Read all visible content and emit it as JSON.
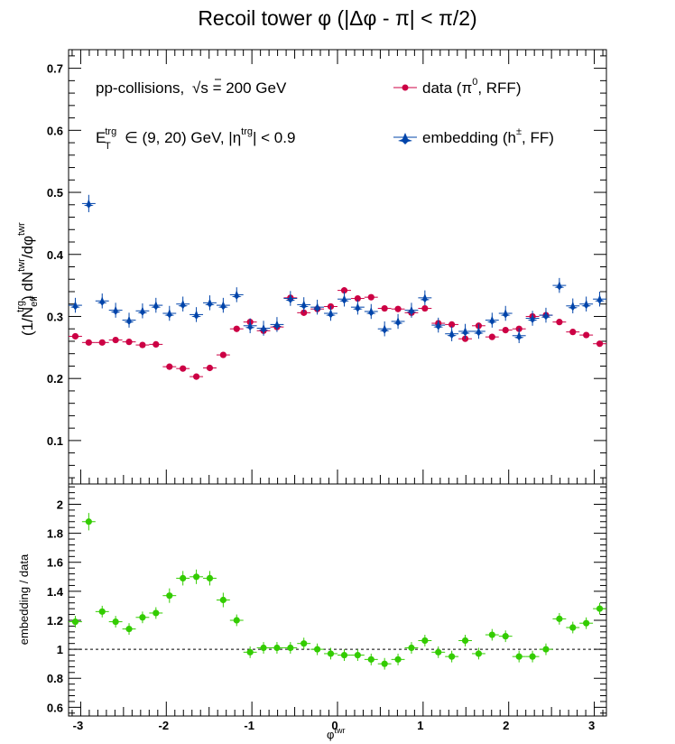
{
  "chart_data": {
    "type": "scatter",
    "title": "Recoil tower φ (|Δφ - π| < π/2)",
    "xlabel": "φ",
    "xlabel_sup": "twr",
    "xlim": [
      -3.1416,
      3.1416
    ],
    "x_ticks": [
      -3,
      -2,
      -1,
      0,
      1,
      2,
      3
    ],
    "bin_halfwidth": 0.0785,
    "legend_placement": "top-right",
    "annotations": {
      "collision_text": "pp-collisions,",
      "energy_text": "s = 200 GeV",
      "energy_sqrt": "√",
      "et_base": "E",
      "et_sub": "T",
      "et_sup": "trg",
      "et_range": "∈ (9, 20) GeV, |η",
      "eta_sup": "trg",
      "eta_cut": "| < 0.9"
    },
    "top_panel": {
      "ylabel": "(1/N",
      "ylabel_parts": {
        "sub1": "eff",
        "sup1": "trg",
        "mid": ") dN",
        "sup2": "twr",
        "mid2": "/dφ",
        "sup3": "twr"
      },
      "ylim": [
        0.03,
        0.73
      ],
      "y_ticks": [
        0.1,
        0.2,
        0.3,
        0.4,
        0.5,
        0.6,
        0.7
      ],
      "y_tick_labels": [
        "0.1",
        "0.2",
        "0.3",
        "0.4",
        "0.5",
        "0.6",
        "0.7"
      ],
      "series": [
        {
          "name": "data (π⁰, RFF)",
          "legend_base": "data (π",
          "legend_sup": "0",
          "legend_tail": ", RFF)",
          "color": "#cc0044",
          "marker": "circle",
          "x": [
            -3.063,
            -2.906,
            -2.749,
            -2.592,
            -2.435,
            -2.278,
            -2.121,
            -1.963,
            -1.806,
            -1.649,
            -1.492,
            -1.335,
            -1.178,
            -1.021,
            -0.864,
            -0.707,
            -0.55,
            -0.393,
            -0.236,
            -0.079,
            0.079,
            0.236,
            0.393,
            0.55,
            0.707,
            0.864,
            1.021,
            1.178,
            1.335,
            1.492,
            1.649,
            1.806,
            1.963,
            2.121,
            2.278,
            2.435,
            2.592,
            2.749,
            2.906,
            3.063
          ],
          "y": [
            0.268,
            0.258,
            0.258,
            0.262,
            0.259,
            0.254,
            0.255,
            0.219,
            0.216,
            0.203,
            0.217,
            0.238,
            0.28,
            0.291,
            0.277,
            0.283,
            0.33,
            0.306,
            0.312,
            0.316,
            0.342,
            0.329,
            0.331,
            0.313,
            0.312,
            0.306,
            0.313,
            0.289,
            0.287,
            0.264,
            0.285,
            0.267,
            0.278,
            0.28,
            0.3,
            0.302,
            0.291,
            0.275,
            0.27,
            0.256
          ],
          "yerr": [
            0.004,
            0.004,
            0.004,
            0.004,
            0.004,
            0.004,
            0.004,
            0.004,
            0.004,
            0.004,
            0.004,
            0.004,
            0.004,
            0.004,
            0.004,
            0.004,
            0.004,
            0.004,
            0.004,
            0.004,
            0.004,
            0.004,
            0.004,
            0.004,
            0.004,
            0.004,
            0.004,
            0.004,
            0.004,
            0.004,
            0.004,
            0.004,
            0.004,
            0.004,
            0.004,
            0.004,
            0.004,
            0.004,
            0.004,
            0.004
          ]
        },
        {
          "name": "embedding (h±, FF)",
          "legend_base": "embedding (h",
          "legend_sup": "±",
          "legend_tail": ", FF)",
          "color": "#0044aa",
          "marker": "star",
          "x": [
            -3.063,
            -2.906,
            -2.749,
            -2.592,
            -2.435,
            -2.278,
            -2.121,
            -1.963,
            -1.806,
            -1.649,
            -1.492,
            -1.335,
            -1.178,
            -1.021,
            -0.864,
            -0.707,
            -0.55,
            -0.393,
            -0.236,
            -0.079,
            0.079,
            0.236,
            0.393,
            0.55,
            0.707,
            0.864,
            1.021,
            1.178,
            1.335,
            1.492,
            1.649,
            1.806,
            1.963,
            2.121,
            2.278,
            2.435,
            2.592,
            2.749,
            2.906,
            3.063
          ],
          "y": [
            0.318,
            0.482,
            0.325,
            0.31,
            0.294,
            0.309,
            0.318,
            0.305,
            0.32,
            0.303,
            0.322,
            0.318,
            0.335,
            0.285,
            0.281,
            0.287,
            0.329,
            0.319,
            0.315,
            0.305,
            0.328,
            0.315,
            0.308,
            0.28,
            0.292,
            0.31,
            0.33,
            0.286,
            0.272,
            0.276,
            0.276,
            0.294,
            0.305,
            0.269,
            0.297,
            0.302,
            0.35,
            0.317,
            0.32,
            0.328
          ],
          "yerr": [
            0.012,
            0.014,
            0.012,
            0.012,
            0.012,
            0.012,
            0.012,
            0.012,
            0.012,
            0.012,
            0.012,
            0.012,
            0.012,
            0.012,
            0.012,
            0.012,
            0.012,
            0.012,
            0.012,
            0.012,
            0.012,
            0.012,
            0.012,
            0.012,
            0.012,
            0.012,
            0.012,
            0.012,
            0.012,
            0.012,
            0.012,
            0.012,
            0.012,
            0.012,
            0.012,
            0.012,
            0.012,
            0.012,
            0.012,
            0.012
          ]
        }
      ]
    },
    "bottom_panel": {
      "ylabel": "embedding / data",
      "ylim": [
        0.54,
        2.14
      ],
      "y_ticks": [
        0.6,
        0.8,
        1.0,
        1.2,
        1.4,
        1.6,
        1.8,
        2.0
      ],
      "y_tick_labels": [
        "0.6",
        "0.8",
        "1",
        "1.2",
        "1.4",
        "1.6",
        "1.8",
        "2"
      ],
      "reference_line": 1.0,
      "series": [
        {
          "name": "",
          "color": "#33cc00",
          "marker": "circle",
          "x": [
            -3.063,
            -2.906,
            -2.749,
            -2.592,
            -2.435,
            -2.278,
            -2.121,
            -1.963,
            -1.806,
            -1.649,
            -1.492,
            -1.335,
            -1.178,
            -1.021,
            -0.864,
            -0.707,
            -0.55,
            -0.393,
            -0.236,
            -0.079,
            0.079,
            0.236,
            0.393,
            0.55,
            0.707,
            0.864,
            1.021,
            1.178,
            1.335,
            1.492,
            1.649,
            1.806,
            1.963,
            2.121,
            2.278,
            2.435,
            2.592,
            2.749,
            2.906,
            3.063
          ],
          "y": [
            1.19,
            1.88,
            1.26,
            1.19,
            1.14,
            1.22,
            1.25,
            1.37,
            1.49,
            1.5,
            1.49,
            1.34,
            1.2,
            0.98,
            1.01,
            1.01,
            1.01,
            1.04,
            1.0,
            0.97,
            0.96,
            0.96,
            0.93,
            0.9,
            0.93,
            1.01,
            1.06,
            0.98,
            0.95,
            1.06,
            0.97,
            1.1,
            1.09,
            0.95,
            0.95,
            1.0,
            1.21,
            1.15,
            1.18,
            1.28
          ],
          "yerr": [
            0.04,
            0.06,
            0.04,
            0.04,
            0.04,
            0.04,
            0.04,
            0.05,
            0.05,
            0.05,
            0.05,
            0.05,
            0.04,
            0.04,
            0.04,
            0.04,
            0.04,
            0.04,
            0.04,
            0.04,
            0.04,
            0.04,
            0.04,
            0.04,
            0.04,
            0.04,
            0.04,
            0.04,
            0.04,
            0.04,
            0.04,
            0.04,
            0.04,
            0.04,
            0.04,
            0.04,
            0.04,
            0.04,
            0.04,
            0.04
          ]
        }
      ]
    }
  }
}
